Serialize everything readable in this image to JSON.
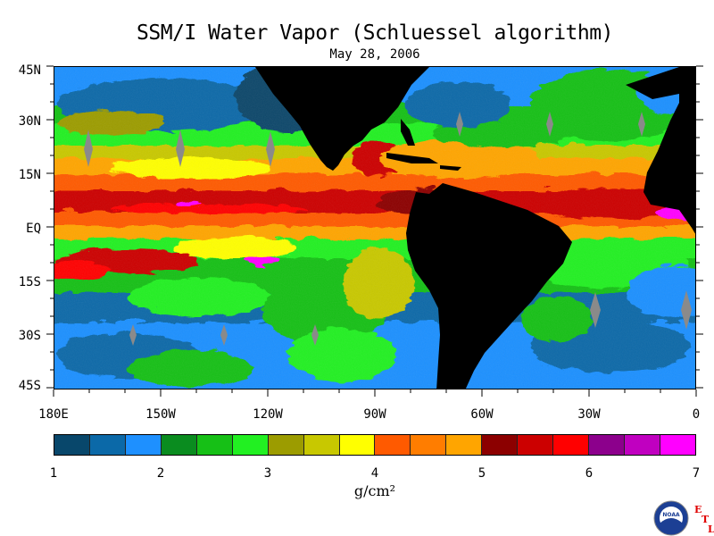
{
  "chart_data": {
    "type": "heatmap",
    "title": "SSM/I Water Vapor (Schluessel algorithm)",
    "subtitle": "May 28, 2006",
    "lat_ticks": [
      "45N",
      "30N",
      "15N",
      "EQ",
      "15S",
      "30S",
      "45S"
    ],
    "lon_ticks": [
      "180E",
      "150W",
      "120W",
      "90W",
      "60W",
      "30W",
      "0"
    ],
    "colorbar": {
      "min": 1,
      "max": 7,
      "ticks": [
        "1",
        "2",
        "3",
        "4",
        "5",
        "6",
        "7"
      ],
      "units": "g/cm²",
      "colors": [
        "#08476b",
        "#0b69a8",
        "#1e90ff",
        "#0a8c1f",
        "#16c016",
        "#22f022",
        "#9c9c00",
        "#c8c800",
        "#ffff00",
        "#ff5a00",
        "#ff7d00",
        "#ffa500",
        "#8c0000",
        "#cc0000",
        "#ff0000",
        "#8c008c",
        "#c000c0",
        "#ff00ff"
      ]
    },
    "land_color": "#000000"
  },
  "logo": {
    "name": "NOAA",
    "text": "NOAA"
  },
  "etl": {
    "e": "E",
    "t": "T",
    "l": "L"
  }
}
